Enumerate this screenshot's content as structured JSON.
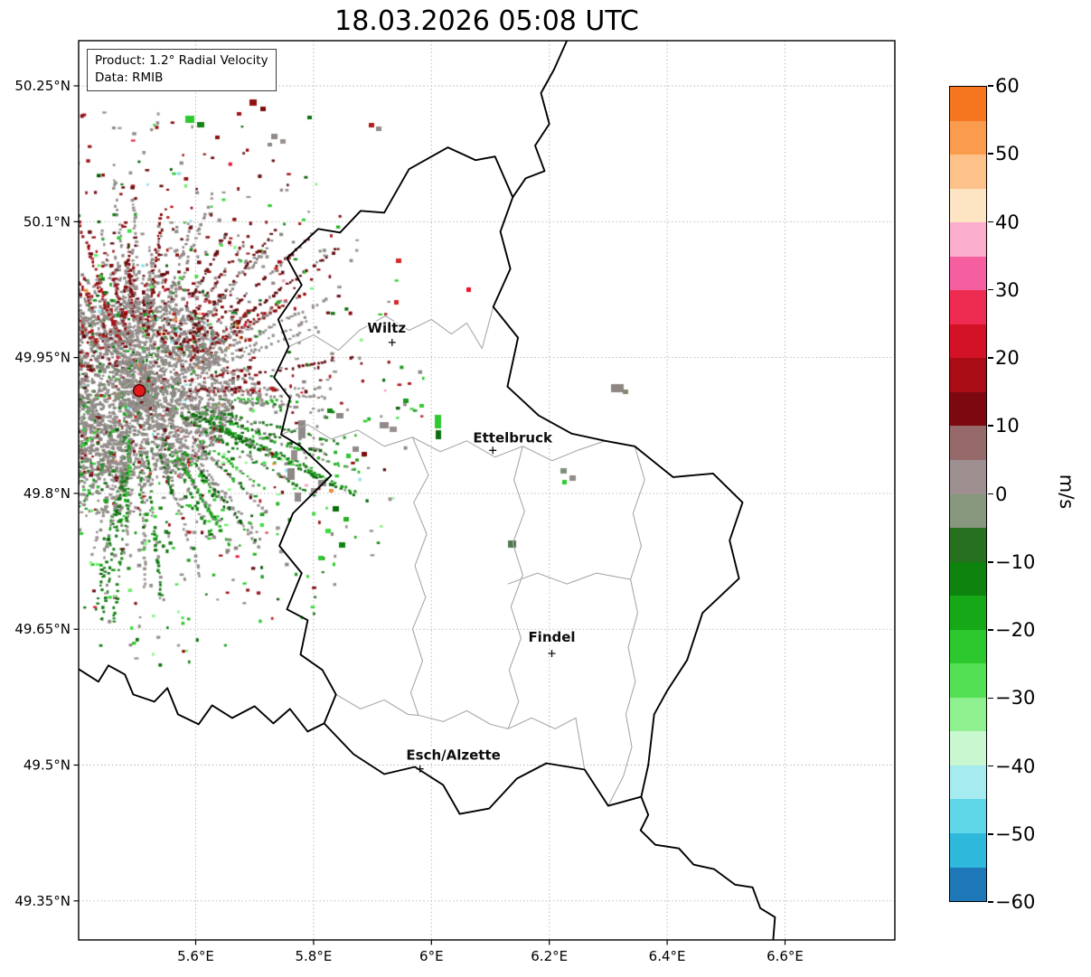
{
  "title": "18.03.2026 05:08 UTC",
  "info_box": {
    "line1": "Product: 1.2° Radial Velocity",
    "line2": "Data: RMIB"
  },
  "axes": {
    "lon_range": [
      5.4014,
      6.7864
    ],
    "lat_range": [
      49.3069,
      50.2999
    ],
    "x_ticks": [
      {
        "label": "5.6°E",
        "lon": 5.6
      },
      {
        "label": "5.8°E",
        "lon": 5.8
      },
      {
        "label": "6°E",
        "lon": 6.0
      },
      {
        "label": "6.2°E",
        "lon": 6.2
      },
      {
        "label": "6.4°E",
        "lon": 6.4
      },
      {
        "label": "6.6°E",
        "lon": 6.6
      }
    ],
    "y_ticks": [
      {
        "label": "50.25°N",
        "lat": 50.25
      },
      {
        "label": "50.1°N",
        "lat": 50.1
      },
      {
        "label": "49.95°N",
        "lat": 49.95
      },
      {
        "label": "49.8°N",
        "lat": 49.8
      },
      {
        "label": "49.65°N",
        "lat": 49.65
      },
      {
        "label": "49.5°N",
        "lat": 49.5
      },
      {
        "label": "49.35°N",
        "lat": 49.35
      }
    ]
  },
  "cities": [
    {
      "name": "Wiltz",
      "lon": 5.9333,
      "lat": 49.9667
    },
    {
      "name": "Ettelbruck",
      "lon": 6.1042,
      "lat": 49.8475
    },
    {
      "name": "Findel",
      "lon": 6.2044,
      "lat": 49.6233
    },
    {
      "name": "Esch/Alzette",
      "lon": 5.9806,
      "lat": 49.4958
    }
  ],
  "radar_site": {
    "lon": 5.5044,
    "lat": 49.9135,
    "color": "#e01b1b"
  },
  "colorbar": {
    "label": "m/s",
    "vmin": -60,
    "vmax": 60,
    "tick_values": [
      60,
      50,
      40,
      30,
      20,
      10,
      0,
      -10,
      -20,
      -30,
      -40,
      -50,
      -60
    ],
    "tick_labels": [
      "60",
      "50",
      "40",
      "30",
      "20",
      "10",
      "0",
      "−10",
      "−20",
      "−30",
      "−40",
      "−50",
      "−60"
    ],
    "bands_top_to_bottom": [
      "#f5761f",
      "#fa9b4d",
      "#fcc28a",
      "#fde4c3",
      "#fbaecb",
      "#f55fa0",
      "#ee2c52",
      "#d31225",
      "#a90c15",
      "#7c090f",
      "#96696a",
      "#9e9091",
      "#87987e",
      "#27701f",
      "#0e830e",
      "#16a816",
      "#2cc72c",
      "#54e054",
      "#8ff08f",
      "#c9f7cf",
      "#a5ebf0",
      "#60d7e8",
      "#2eb8dc",
      "#1e78b8"
    ]
  }
}
